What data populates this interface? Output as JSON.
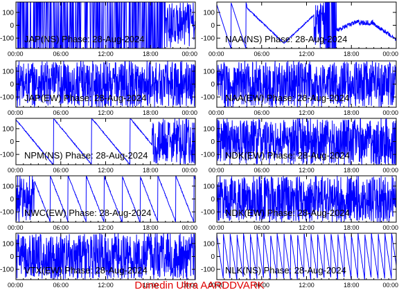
{
  "footer": "Dunedin Ultra AARDDVARK",
  "colors": {
    "trace": "#0000ff",
    "axis": "#000000",
    "footer": "#e00000",
    "background": "#ffffff"
  },
  "chart_data": [
    {
      "type": "line",
      "title": "JAP(NS) Phase: 28-Aug-2024",
      "pattern": "dense_late",
      "x": [
        "00:00",
        "06:00",
        "12:00",
        "18:00",
        "00:00"
      ],
      "yticks": [
        100,
        0,
        -100
      ],
      "ylim": [
        -180,
        180
      ],
      "xlabel": "",
      "ylabel": "",
      "grid": false
    },
    {
      "type": "line",
      "title": "NAA(NS) Phase: 28-Aug-2024",
      "pattern": "naa",
      "x": [
        "00:00",
        "06:00",
        "12:00",
        "18:00",
        "00:00"
      ],
      "yticks": [
        100,
        0,
        -100
      ],
      "ylim": [
        -180,
        180
      ],
      "xlabel": "",
      "ylabel": "",
      "grid": false
    },
    {
      "type": "line",
      "title": "JAP(EW) Phase: 28-Aug-2024",
      "pattern": "dense",
      "x": [
        "00:00",
        "06:00",
        "12:00",
        "18:00",
        "00:00"
      ],
      "yticks": [
        100,
        0,
        -100
      ],
      "ylim": [
        -180,
        180
      ],
      "xlabel": "",
      "ylabel": "",
      "grid": false
    },
    {
      "type": "line",
      "title": "NAA(EW) Phase: 28-Aug-2024",
      "pattern": "dense",
      "x": [
        "00:00",
        "06:00",
        "12:00",
        "18:00",
        "00:00"
      ],
      "yticks": [
        100,
        0,
        -100
      ],
      "ylim": [
        -180,
        180
      ],
      "xlabel": "",
      "ylabel": "",
      "grid": false
    },
    {
      "type": "line",
      "title": "NPM(NS) Phase: 28-Aug-2024",
      "pattern": "npm",
      "x": [
        "00:00",
        "06:00",
        "12:00",
        "18:00",
        "00:00"
      ],
      "yticks": [
        100,
        0,
        -100
      ],
      "ylim": [
        -180,
        180
      ],
      "xlabel": "",
      "ylabel": "",
      "grid": false
    },
    {
      "type": "line",
      "title": "NDK(EW) Phase: 28-Aug-2024",
      "pattern": "dense",
      "x": [
        "00:00",
        "06:00",
        "12:00",
        "18:00",
        "00:00"
      ],
      "yticks": [
        100,
        0,
        -100
      ],
      "ylim": [
        -180,
        180
      ],
      "xlabel": "",
      "ylabel": "",
      "grid": false
    },
    {
      "type": "line",
      "title": "NWC(EW) Phase: 28-Aug-2024",
      "pattern": "nwc",
      "x": [
        "00:00",
        "06:00",
        "12:00",
        "18:00",
        "00:00"
      ],
      "yticks": [
        100,
        0,
        -100
      ],
      "ylim": [
        -180,
        180
      ],
      "xlabel": "",
      "ylabel": "",
      "grid": false
    },
    {
      "type": "line",
      "title": "NDK(EW) Phase: 28-Aug-2024",
      "pattern": "dense",
      "x": [
        "00:00",
        "06:00",
        "12:00",
        "18:00",
        "00:00"
      ],
      "yticks": [
        100,
        0,
        -100
      ],
      "ylim": [
        -180,
        180
      ],
      "xlabel": "",
      "ylabel": "",
      "grid": false
    },
    {
      "type": "line",
      "title": "VTX(EW) Phase: 28-Aug-2024",
      "pattern": "dense",
      "x": [
        "00:00",
        "06:00",
        "12:00",
        "18:00",
        "00:00"
      ],
      "yticks": [
        100,
        0,
        -100
      ],
      "ylim": [
        -180,
        180
      ],
      "xlabel": "",
      "ylabel": "",
      "grid": false
    },
    {
      "type": "line",
      "title": "NLK(NS) Phase: 28-Aug-2024",
      "pattern": "nlk",
      "x": [
        "00:00",
        "06:00",
        "12:00",
        "18:00",
        "00:00"
      ],
      "yticks": [
        100,
        0,
        -100
      ],
      "ylim": [
        -180,
        180
      ],
      "xlabel": "",
      "ylabel": "",
      "grid": false
    }
  ]
}
